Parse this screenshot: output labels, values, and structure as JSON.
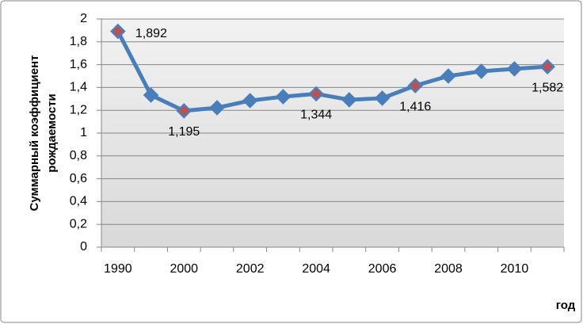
{
  "chart_data": {
    "type": "line",
    "ylabel": [
      "Суммарный коэффициент",
      "рождаемости"
    ],
    "xlabel": "год",
    "categories": [
      "1990",
      null,
      "2000",
      null,
      "2002",
      null,
      "2004",
      null,
      "2006",
      null,
      "2008",
      null,
      "2010",
      null
    ],
    "series": [
      {
        "color": "#4a7ebb",
        "marker_highlight": "#c0504d",
        "values": [
          1.892,
          1.333,
          1.195,
          1.222,
          1.285,
          1.319,
          1.344,
          1.292,
          1.306,
          1.416,
          1.5,
          1.542,
          1.563,
          1.582
        ],
        "value_labels": [
          "1,892",
          null,
          "1,195",
          null,
          null,
          null,
          "1,344",
          null,
          null,
          "1,416",
          null,
          null,
          null,
          "1,582"
        ]
      }
    ],
    "ylim": [
      0,
      2
    ],
    "yticks": [
      0,
      {
        "value": 0.2,
        "label": "0,2"
      },
      {
        "value": 0.4,
        "label": "0,4"
      },
      {
        "value": 0.6,
        "label": "0,6"
      },
      {
        "value": 0.8,
        "label": "0,8"
      },
      1,
      {
        "value": 1.2,
        "label": "1,2"
      },
      {
        "value": 1.4,
        "label": "1,4"
      },
      {
        "value": 1.6,
        "label": "1,6"
      },
      {
        "value": 1.8,
        "label": "1,8"
      },
      2
    ],
    "grid": true
  }
}
